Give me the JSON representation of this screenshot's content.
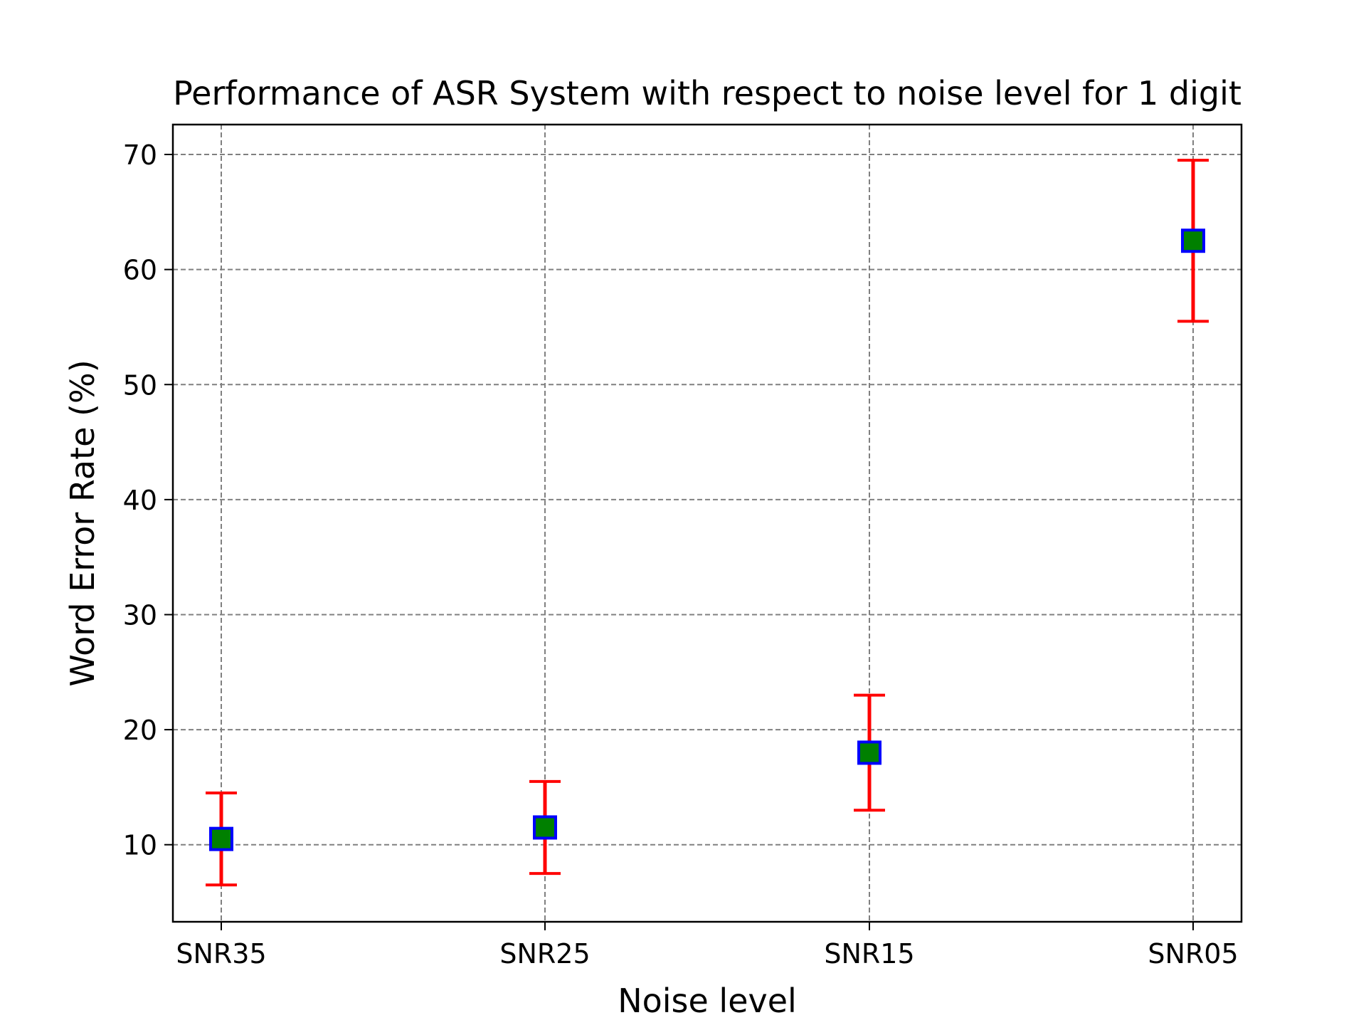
{
  "chart_data": {
    "type": "scatter",
    "title": "Performance of ASR System with respect to noise level for 1 digit",
    "xlabel": "Noise level",
    "ylabel": "Word Error Rate (%)",
    "categories": [
      "SNR35",
      "SNR25",
      "SNR15",
      "SNR05"
    ],
    "values": [
      10.5,
      11.5,
      18.0,
      62.5
    ],
    "error_low": [
      6.5,
      7.5,
      13.0,
      55.5
    ],
    "error_high": [
      14.5,
      15.5,
      23.0,
      69.5
    ],
    "ylim": [
      3.3,
      72.6
    ],
    "yticks": [
      10,
      20,
      30,
      40,
      50,
      60,
      70
    ],
    "grid": true,
    "colors": {
      "marker_face": "#008000",
      "marker_edge": "#0000ff",
      "error_bar": "#ff0000",
      "grid": "#808080"
    }
  }
}
